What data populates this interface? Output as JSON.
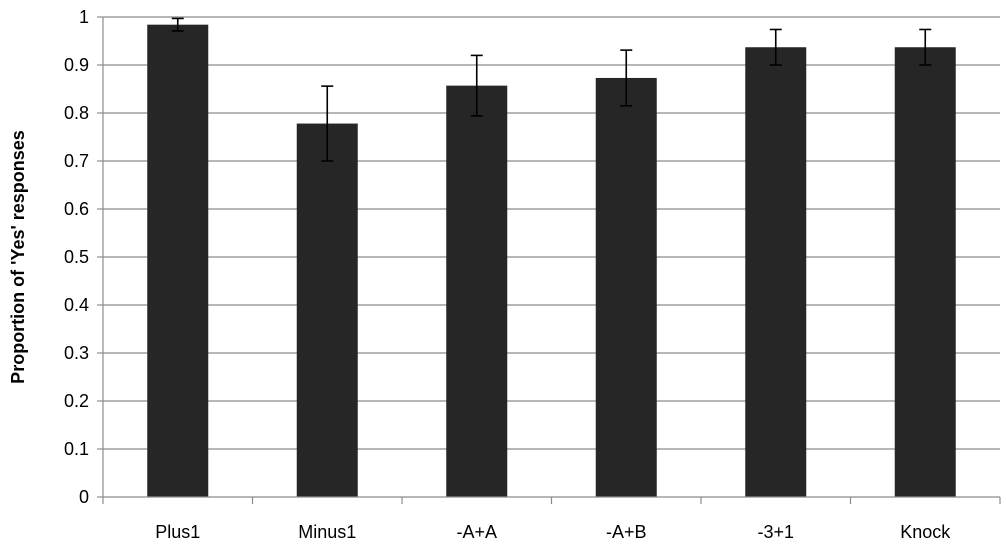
{
  "chart_data": {
    "type": "bar",
    "title": "",
    "xlabel": "",
    "ylabel": "Proportion of 'Yes' responses",
    "categories": [
      "Plus1",
      "Minus1",
      "-A+A",
      "-A+B",
      "-3+1",
      "Knock"
    ],
    "values": [
      0.984,
      0.778,
      0.857,
      0.873,
      0.937,
      0.937
    ],
    "error": [
      0.013,
      0.078,
      0.063,
      0.058,
      0.037,
      0.037
    ],
    "ylim": [
      0,
      1
    ],
    "yticks": [
      "0",
      "0.1",
      "0.2",
      "0.3",
      "0.4",
      "0.5",
      "0.6",
      "0.7",
      "0.8",
      "0.9",
      "1"
    ],
    "grid": true,
    "legend": "none",
    "bar_color": "#262626",
    "grid_color": "#8c8c8c",
    "axis_color": "#8c8c8c"
  }
}
